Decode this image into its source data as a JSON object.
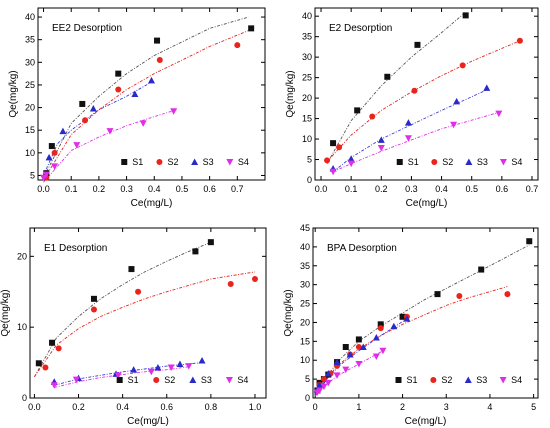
{
  "figure_colors": {
    "S1": "#111111",
    "S2": "#e8241c",
    "S3": "#2a2ac8",
    "S4": "#e02ee8",
    "fitS1": "#555555",
    "fitS2": "#e8241c",
    "fitS3": "#3a3ae0",
    "fitS4": "#e02ee8"
  },
  "chart_data": [
    {
      "type": "scatter",
      "title": "EE2 Desorption",
      "xlabel": "Ce(mg/L)",
      "ylabel": "Qe(mg/kg)",
      "xlim": [
        -0.02,
        0.8
      ],
      "ylim": [
        4,
        42
      ],
      "xticks": [
        0.0,
        0.1,
        0.2,
        0.3,
        0.4,
        0.5,
        0.6,
        0.7
      ],
      "yticks": [
        5,
        10,
        15,
        20,
        25,
        30,
        35,
        40
      ],
      "legend_position": "bottom-right",
      "series": [
        {
          "name": "S1",
          "marker": "square",
          "x": [
            0.01,
            0.03,
            0.14,
            0.27,
            0.41,
            0.75
          ],
          "y": [
            5.5,
            11.5,
            20.8,
            27.5,
            34.8,
            37.5
          ],
          "fit": [
            [
              0.0,
              4.5
            ],
            [
              0.1,
              16.5
            ],
            [
              0.2,
              22.5
            ],
            [
              0.3,
              27.5
            ],
            [
              0.4,
              31.5
            ],
            [
              0.5,
              34.5
            ],
            [
              0.6,
              37.5
            ],
            [
              0.74,
              40.0
            ]
          ]
        },
        {
          "name": "S2",
          "marker": "circle",
          "x": [
            0.01,
            0.04,
            0.15,
            0.27,
            0.42,
            0.7
          ],
          "y": [
            4.5,
            10.0,
            17.2,
            24.0,
            30.5,
            33.8
          ],
          "fit": [
            [
              0.0,
              4.0
            ],
            [
              0.1,
              14.0
            ],
            [
              0.2,
              19.5
            ],
            [
              0.3,
              24.0
            ],
            [
              0.4,
              27.5
            ],
            [
              0.5,
              30.5
            ],
            [
              0.6,
              33.5
            ],
            [
              0.74,
              37.0
            ]
          ]
        },
        {
          "name": "S3",
          "marker": "triangle-up",
          "x": [
            0.02,
            0.07,
            0.18,
            0.33,
            0.39
          ],
          "y": [
            9.0,
            14.8,
            19.8,
            23.0,
            26.0
          ],
          "fit": [
            [
              0.0,
              5.0
            ],
            [
              0.05,
              12.0
            ],
            [
              0.1,
              15.0
            ],
            [
              0.2,
              19.5
            ],
            [
              0.3,
              22.5
            ],
            [
              0.4,
              26.0
            ]
          ]
        },
        {
          "name": "S4",
          "marker": "triangle-down",
          "x": [
            0.0,
            0.01,
            0.04,
            0.12,
            0.24,
            0.36,
            0.47
          ],
          "y": [
            4.5,
            5.2,
            7.0,
            11.7,
            14.8,
            16.5,
            19.2
          ],
          "fit": [
            [
              0.0,
              3.5
            ],
            [
              0.1,
              10.5
            ],
            [
              0.2,
              13.5
            ],
            [
              0.3,
              16.0
            ],
            [
              0.4,
              18.0
            ],
            [
              0.48,
              19.5
            ]
          ]
        }
      ]
    },
    {
      "type": "scatter",
      "title": "E2 Desorption",
      "xlabel": "Ce(mg/L)",
      "ylabel": "Qe(mg/kg)",
      "xlim": [
        -0.02,
        0.72
      ],
      "ylim": [
        0,
        42
      ],
      "xticks": [
        0.0,
        0.1,
        0.2,
        0.3,
        0.4,
        0.5,
        0.6,
        0.7
      ],
      "yticks": [
        0,
        5,
        10,
        15,
        20,
        25,
        30,
        35,
        40
      ],
      "legend_position": "bottom-right",
      "series": [
        {
          "name": "S1",
          "marker": "square",
          "x": [
            0.04,
            0.12,
            0.22,
            0.32,
            0.48
          ],
          "y": [
            9.0,
            17.0,
            25.2,
            33.0,
            40.2
          ],
          "fit": [
            [
              0.02,
              4.0
            ],
            [
              0.1,
              14.5
            ],
            [
              0.2,
              23.0
            ],
            [
              0.3,
              30.0
            ],
            [
              0.4,
              36.0
            ],
            [
              0.48,
              41.0
            ]
          ]
        },
        {
          "name": "S2",
          "marker": "circle",
          "x": [
            0.02,
            0.06,
            0.17,
            0.31,
            0.47,
            0.66
          ],
          "y": [
            4.8,
            8.0,
            15.5,
            21.8,
            28.0,
            34.0
          ],
          "fit": [
            [
              0.02,
              4.5
            ],
            [
              0.1,
              11.0
            ],
            [
              0.2,
              17.0
            ],
            [
              0.3,
              21.5
            ],
            [
              0.4,
              25.5
            ],
            [
              0.5,
              29.0
            ],
            [
              0.66,
              34.0
            ]
          ]
        },
        {
          "name": "S3",
          "marker": "triangle-up",
          "x": [
            0.04,
            0.1,
            0.2,
            0.29,
            0.45,
            0.55
          ],
          "y": [
            2.8,
            5.2,
            9.8,
            14.0,
            19.2,
            22.5
          ],
          "fit": [
            [
              0.04,
              2.0
            ],
            [
              0.1,
              5.5
            ],
            [
              0.2,
              10.0
            ],
            [
              0.3,
              13.5
            ],
            [
              0.4,
              17.0
            ],
            [
              0.55,
              22.0
            ]
          ]
        },
        {
          "name": "S4",
          "marker": "triangle-down",
          "x": [
            0.04,
            0.1,
            0.2,
            0.29,
            0.44,
            0.59
          ],
          "y": [
            2.0,
            4.0,
            7.8,
            10.2,
            13.5,
            16.2
          ],
          "fit": [
            [
              0.04,
              2.0
            ],
            [
              0.1,
              4.0
            ],
            [
              0.2,
              7.0
            ],
            [
              0.3,
              9.8
            ],
            [
              0.4,
              12.5
            ],
            [
              0.59,
              16.5
            ]
          ]
        }
      ]
    },
    {
      "type": "scatter",
      "title": "E1 Desorption",
      "xlabel": "Ce(mg/L)",
      "ylabel": "Qe(mg/kg)",
      "xlim": [
        -0.02,
        1.05
      ],
      "ylim": [
        0,
        24
      ],
      "xticks": [
        0.0,
        0.2,
        0.4,
        0.6,
        0.8,
        1.0
      ],
      "yticks": [
        0,
        10,
        20
      ],
      "legend_position": "bottom-right",
      "series": [
        {
          "name": "S1",
          "marker": "square",
          "x": [
            0.02,
            0.08,
            0.27,
            0.44,
            0.73,
            0.8
          ],
          "y": [
            4.9,
            7.8,
            14.0,
            18.2,
            20.7,
            22.0
          ],
          "fit": [
            [
              0.0,
              3.0
            ],
            [
              0.1,
              8.5
            ],
            [
              0.2,
              11.5
            ],
            [
              0.3,
              14.0
            ],
            [
              0.4,
              16.0
            ],
            [
              0.5,
              17.8
            ],
            [
              0.6,
              19.3
            ],
            [
              0.7,
              20.7
            ],
            [
              0.8,
              22.0
            ]
          ]
        },
        {
          "name": "S2",
          "marker": "circle",
          "x": [
            0.05,
            0.11,
            0.27,
            0.47,
            0.89,
            1.0
          ],
          "y": [
            4.3,
            7.0,
            12.5,
            15.0,
            16.1,
            16.8
          ],
          "fit": [
            [
              0.0,
              3.0
            ],
            [
              0.1,
              7.5
            ],
            [
              0.2,
              9.8
            ],
            [
              0.3,
              11.5
            ],
            [
              0.4,
              12.8
            ],
            [
              0.5,
              14.0
            ],
            [
              0.6,
              15.0
            ],
            [
              0.7,
              15.9
            ],
            [
              0.8,
              16.8
            ],
            [
              1.0,
              17.8
            ]
          ]
        },
        {
          "name": "S3",
          "marker": "triangle-up",
          "x": [
            0.09,
            0.2,
            0.37,
            0.45,
            0.56,
            0.66,
            0.76
          ],
          "y": [
            2.3,
            2.8,
            3.4,
            4.0,
            4.3,
            4.8,
            5.3
          ],
          "fit": [
            [
              0.09,
              1.8
            ],
            [
              0.2,
              2.7
            ],
            [
              0.3,
              3.2
            ],
            [
              0.4,
              3.7
            ],
            [
              0.5,
              4.1
            ],
            [
              0.6,
              4.5
            ],
            [
              0.76,
              5.0
            ]
          ]
        },
        {
          "name": "S4",
          "marker": "triangle-down",
          "x": [
            0.09,
            0.19,
            0.38,
            0.53,
            0.62,
            0.7
          ],
          "y": [
            1.8,
            2.6,
            3.2,
            3.7,
            4.3,
            4.5
          ],
          "fit": [
            [
              0.09,
              1.5
            ],
            [
              0.2,
              2.3
            ],
            [
              0.3,
              2.9
            ],
            [
              0.4,
              3.3
            ],
            [
              0.5,
              3.7
            ],
            [
              0.6,
              4.0
            ],
            [
              0.7,
              4.4
            ]
          ]
        }
      ]
    },
    {
      "type": "scatter",
      "title": "BPA Desorption",
      "xlabel": "Ce(mg/L)",
      "ylabel": "Qe(mg/kg)",
      "xlim": [
        -0.05,
        5.1
      ],
      "ylim": [
        0,
        45
      ],
      "xticks": [
        0,
        1,
        2,
        3,
        4,
        5
      ],
      "yticks": [
        0,
        5,
        10,
        15,
        20,
        25,
        30,
        35,
        40,
        45
      ],
      "legend_position": "bottom-right",
      "series": [
        {
          "name": "S1",
          "marker": "square",
          "x": [
            0.05,
            0.1,
            0.2,
            0.3,
            0.5,
            0.7,
            1.0,
            1.5,
            2.0,
            2.8,
            3.8,
            4.9
          ],
          "y": [
            2.0,
            4.0,
            5.0,
            6.2,
            9.5,
            13.5,
            15.5,
            19.5,
            21.5,
            27.5,
            34.0,
            41.5
          ],
          "fit": [
            [
              0.0,
              0.5
            ],
            [
              0.5,
              9.5
            ],
            [
              1.0,
              15.0
            ],
            [
              1.5,
              19.0
            ],
            [
              2.0,
              22.5
            ],
            [
              2.5,
              26.0
            ],
            [
              3.0,
              29.0
            ],
            [
              3.5,
              32.0
            ],
            [
              4.0,
              35.0
            ],
            [
              4.9,
              40.5
            ]
          ]
        },
        {
          "name": "S2",
          "marker": "circle",
          "x": [
            0.1,
            0.2,
            0.35,
            0.5,
            0.8,
            1.0,
            1.5,
            2.1,
            3.3,
            4.4
          ],
          "y": [
            3.5,
            5.0,
            6.5,
            8.5,
            11.5,
            13.5,
            18.5,
            21.5,
            27.0,
            27.5
          ],
          "fit": [
            [
              0.0,
              1.0
            ],
            [
              0.5,
              8.5
            ],
            [
              1.0,
              13.0
            ],
            [
              1.5,
              16.5
            ],
            [
              2.0,
              19.5
            ],
            [
              2.5,
              22.0
            ],
            [
              3.0,
              24.5
            ],
            [
              3.5,
              26.5
            ],
            [
              4.4,
              29.5
            ]
          ]
        },
        {
          "name": "S3",
          "marker": "triangle-up",
          "x": [
            0.05,
            0.1,
            0.3,
            0.5,
            0.8,
            1.1,
            1.4,
            1.8,
            2.1
          ],
          "y": [
            2.0,
            3.5,
            6.5,
            9.5,
            11.5,
            13.5,
            16.0,
            19.0,
            21.0
          ],
          "fit": [
            [
              0.0,
              0.5
            ],
            [
              0.3,
              5.5
            ],
            [
              0.6,
              9.0
            ],
            [
              1.0,
              12.5
            ],
            [
              1.5,
              16.5
            ],
            [
              2.1,
              21.0
            ]
          ]
        },
        {
          "name": "S4",
          "marker": "triangle-down",
          "x": [
            0.05,
            0.1,
            0.2,
            0.3,
            0.5,
            0.7,
            1.0,
            1.4,
            1.55
          ],
          "y": [
            1.5,
            2.0,
            3.0,
            4.0,
            6.0,
            7.5,
            9.0,
            11.0,
            12.5
          ],
          "fit": [
            [
              0.0,
              0.5
            ],
            [
              0.2,
              3.0
            ],
            [
              0.5,
              5.8
            ],
            [
              1.0,
              9.0
            ],
            [
              1.55,
              12.5
            ]
          ]
        }
      ]
    }
  ]
}
